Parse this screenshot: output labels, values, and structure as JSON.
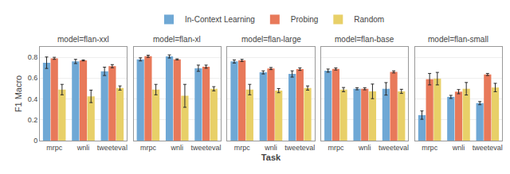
{
  "chart_data": [
    {
      "type": "bar",
      "title": "model=flan-xxl",
      "ylabel": "F1 Macro",
      "categories": [
        "mrpc",
        "wnli",
        "tweeteval"
      ],
      "series": [
        {
          "name": "In-Context Learning",
          "color": "#6FA8D5",
          "values": [
            0.748,
            0.76,
            0.665
          ],
          "errors": [
            0.055,
            0.02,
            0.04
          ]
        },
        {
          "name": "Probing",
          "color": "#E8795A",
          "values": [
            0.79,
            0.77,
            0.715
          ],
          "errors": [
            0.01,
            0.005,
            0.015
          ]
        },
        {
          "name": "Random",
          "color": "#E8D068",
          "values": [
            0.49,
            0.425,
            0.505
          ],
          "errors": [
            0.05,
            0.06,
            0.02
          ]
        }
      ],
      "ylim": [
        0,
        0.9
      ],
      "yticks": [
        0,
        0.2,
        0.4,
        0.6,
        0.8
      ],
      "grid": true,
      "legend": "top"
    },
    {
      "type": "bar",
      "title": "model=flan-xl",
      "categories": [
        "mrpc",
        "wnli",
        "tweeteval"
      ],
      "series": [
        {
          "name": "In-Context Learning",
          "color": "#6FA8D5",
          "values": [
            0.78,
            0.808,
            0.695
          ],
          "errors": [
            0.015,
            0.015,
            0.03
          ]
        },
        {
          "name": "Probing",
          "color": "#E8795A",
          "values": [
            0.81,
            0.78,
            0.71
          ],
          "errors": [
            0.01,
            0.005,
            0.015
          ]
        },
        {
          "name": "Random",
          "color": "#E8D068",
          "values": [
            0.49,
            0.43,
            0.498
          ],
          "errors": [
            0.05,
            0.11,
            0.02
          ]
        }
      ],
      "ylim": [
        0,
        0.9
      ],
      "yticks": [
        0,
        0.2,
        0.4,
        0.6,
        0.8
      ],
      "grid": true,
      "tick_labels": "x"
    },
    {
      "type": "bar",
      "title": "model=flan-large",
      "xlabel": "Task",
      "categories": [
        "mrpc",
        "wnli",
        "tweeteval"
      ],
      "series": [
        {
          "name": "In-Context Learning",
          "color": "#6FA8D5",
          "values": [
            0.76,
            0.655,
            0.64
          ],
          "errors": [
            0.015,
            0.015,
            0.03
          ]
        },
        {
          "name": "Probing",
          "color": "#E8795A",
          "values": [
            0.77,
            0.692,
            0.686
          ],
          "errors": [
            0.01,
            0.01,
            0.012
          ]
        },
        {
          "name": "Random",
          "color": "#E8D068",
          "values": [
            0.49,
            0.48,
            0.505
          ],
          "errors": [
            0.05,
            0.02,
            0.02
          ]
        }
      ],
      "ylim": [
        0,
        0.9
      ],
      "yticks": [
        0,
        0.2,
        0.4,
        0.6,
        0.8
      ],
      "grid": true,
      "tick_labels": "x"
    },
    {
      "type": "bar",
      "title": "model=flan-base",
      "categories": [
        "mrpc",
        "wnli",
        "tweeteval"
      ],
      "series": [
        {
          "name": "In-Context Learning",
          "color": "#6FA8D5",
          "values": [
            0.672,
            0.498,
            0.497
          ],
          "errors": [
            0.015,
            0.01,
            0.06
          ]
        },
        {
          "name": "Probing",
          "color": "#E8795A",
          "values": [
            0.688,
            0.498,
            0.66
          ],
          "errors": [
            0.01,
            0.01,
            0.01
          ]
        },
        {
          "name": "Random",
          "color": "#E8D068",
          "values": [
            0.49,
            0.473,
            0.473
          ],
          "errors": [
            0.02,
            0.07,
            0.02
          ]
        }
      ],
      "ylim": [
        0,
        0.9
      ],
      "yticks": [
        0,
        0.2,
        0.4,
        0.6,
        0.8
      ],
      "grid": true,
      "tick_labels": "x"
    },
    {
      "type": "bar",
      "title": "model=flan-small",
      "categories": [
        "mrpc",
        "wnli",
        "tweeteval"
      ],
      "series": [
        {
          "name": "In-Context Learning",
          "color": "#6FA8D5",
          "values": [
            0.245,
            0.42,
            0.36
          ],
          "errors": [
            0.04,
            0.015,
            0.015
          ]
        },
        {
          "name": "Probing",
          "color": "#E8795A",
          "values": [
            0.59,
            0.47,
            0.635
          ],
          "errors": [
            0.055,
            0.02,
            0.01
          ]
        },
        {
          "name": "Random",
          "color": "#E8D068",
          "values": [
            0.595,
            0.498,
            0.51
          ],
          "errors": [
            0.06,
            0.06,
            0.04
          ]
        }
      ],
      "ylim": [
        0,
        0.9
      ],
      "yticks": [
        0,
        0.2,
        0.4,
        0.6,
        0.8
      ],
      "grid": true,
      "tick_labels": "x"
    }
  ]
}
